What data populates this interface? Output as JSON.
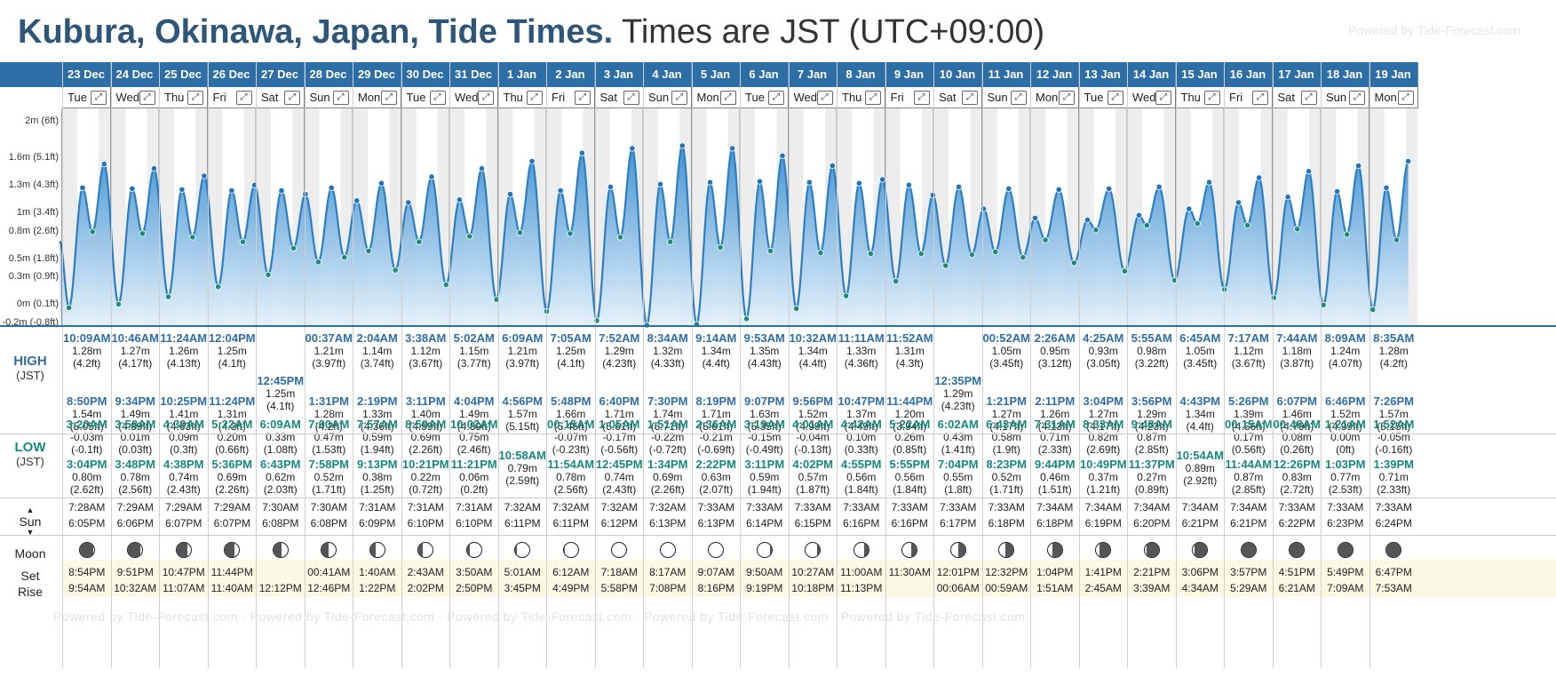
{
  "title": {
    "location": "Kubura, Okinawa, Japan, Tide Times.",
    "timezone": "Times are JST (UTC+09:00)"
  },
  "powered_by": "Powered by Tide-Forecast.com",
  "powered_by_footer": "Powered by Tide-Forecast.com  ·  Powered by Tide-Forecast.com  ·  Powered by Tide-Forecast.com  ·  Powered by Tide-Forecast.com  ·  Powered by Tide-Forecast.com",
  "row_labels": {
    "high": "HIGH",
    "high_sub": "(JST)",
    "low": "LOW",
    "low_sub": "(JST)",
    "sun": "Sun",
    "moon": "Moon",
    "set": "Set",
    "rise": "Rise"
  },
  "y_axis": [
    {
      "label": "2m (6ft)",
      "value": 2.0
    },
    {
      "label": "1.6m (5.1ft)",
      "value": 1.6
    },
    {
      "label": "1.3m (4.3ft)",
      "value": 1.3
    },
    {
      "label": "1m (3.4ft)",
      "value": 1.0
    },
    {
      "label": "0.8m (2.6ft)",
      "value": 0.8
    },
    {
      "label": "0.5m (1.8ft)",
      "value": 0.5
    },
    {
      "label": "0.3m (0.9ft)",
      "value": 0.3
    },
    {
      "label": "0m (0.1ft)",
      "value": 0.0
    },
    {
      "label": "-0.2m (-0.8ft)",
      "value": -0.2
    }
  ],
  "colors": {
    "header_blue": "#2e6ea6",
    "high_text": "#2e6ea6",
    "low_text": "#15897a",
    "tide_line": "#2b7fc4",
    "tide_fill_top": "#3d8fd0",
    "tide_fill_bottom": "#e4f1fb",
    "night_band": "#ededed"
  },
  "days": [
    {
      "date": "23 Dec",
      "dow": "Tue",
      "highs": [
        {
          "t": "10:09AM",
          "m": "1.28m",
          "ft": "(4.2ft)"
        },
        {
          "t": "8:50PM",
          "m": "1.54m",
          "ft": "(5.05ft)"
        }
      ],
      "lows": [
        {
          "t": "3:20AM",
          "m": "-0.03m",
          "ft": "(-0.1ft)"
        },
        {
          "t": "3:04PM",
          "m": "0.80m",
          "ft": "(2.62ft)"
        }
      ],
      "sunrise": "7:28AM",
      "sunset": "6:05PM",
      "moon_set": "8:54PM",
      "moon_rise": "9:54AM",
      "moon_phase": 0.08
    },
    {
      "date": "24 Dec",
      "dow": "Wed",
      "highs": [
        {
          "t": "10:46AM",
          "m": "1.27m",
          "ft": "(4.17ft)"
        },
        {
          "t": "9:34PM",
          "m": "1.49m",
          "ft": "(4.89ft)"
        }
      ],
      "lows": [
        {
          "t": "3:58AM",
          "m": "0.01m",
          "ft": "(0.03ft)"
        },
        {
          "t": "3:48PM",
          "m": "0.78m",
          "ft": "(2.56ft)"
        }
      ],
      "sunrise": "7:29AM",
      "sunset": "6:06PM",
      "moon_set": "9:51PM",
      "moon_rise": "10:32AM",
      "moon_phase": 0.12
    },
    {
      "date": "25 Dec",
      "dow": "Thu",
      "highs": [
        {
          "t": "11:24AM",
          "m": "1.26m",
          "ft": "(4.13ft)"
        },
        {
          "t": "10:25PM",
          "m": "1.41m",
          "ft": "(4.63ft)"
        }
      ],
      "lows": [
        {
          "t": "4:39AM",
          "m": "0.09m",
          "ft": "(0.3ft)"
        },
        {
          "t": "4:38PM",
          "m": "0.74m",
          "ft": "(2.43ft)"
        }
      ],
      "sunrise": "7:29AM",
      "sunset": "6:07PM",
      "moon_set": "10:47PM",
      "moon_rise": "11:07AM",
      "moon_phase": 0.16
    },
    {
      "date": "26 Dec",
      "dow": "Fri",
      "highs": [
        {
          "t": "12:04PM",
          "m": "1.25m",
          "ft": "(4.1ft)"
        },
        {
          "t": "11:24PM",
          "m": "1.31m",
          "ft": "(4.3ft)"
        }
      ],
      "lows": [
        {
          "t": "5:22AM",
          "m": "0.20m",
          "ft": "(0.66ft)"
        },
        {
          "t": "5:36PM",
          "m": "0.69m",
          "ft": "(2.26ft)"
        }
      ],
      "sunrise": "7:29AM",
      "sunset": "6:07PM",
      "moon_set": "11:44PM",
      "moon_rise": "11:40AM",
      "moon_phase": 0.2
    },
    {
      "date": "27 Dec",
      "dow": "Sat",
      "highs": [
        {
          "t": "12:45PM",
          "m": "1.25m",
          "ft": "(4.1ft)"
        }
      ],
      "lows": [
        {
          "t": "6:09AM",
          "m": "0.33m",
          "ft": "(1.08ft)"
        },
        {
          "t": "6:43PM",
          "m": "0.62m",
          "ft": "(2.03ft)"
        }
      ],
      "sunrise": "7:30AM",
      "sunset": "6:08PM",
      "moon_set": "",
      "moon_rise": "12:12PM",
      "moon_phase": 0.25
    },
    {
      "date": "28 Dec",
      "dow": "Sun",
      "highs": [
        {
          "t": "00:37AM",
          "m": "1.21m",
          "ft": "(3.97ft)"
        },
        {
          "t": "1:31PM",
          "m": "1.28m",
          "ft": "(4.2ft)"
        }
      ],
      "lows": [
        {
          "t": "7:00AM",
          "m": "0.47m",
          "ft": "(1.53ft)"
        },
        {
          "t": "7:58PM",
          "m": "0.52m",
          "ft": "(1.71ft)"
        }
      ],
      "sunrise": "7:30AM",
      "sunset": "6:08PM",
      "moon_set": "00:41AM",
      "moon_rise": "12:46PM",
      "moon_phase": 0.29
    },
    {
      "date": "29 Dec",
      "dow": "Mon",
      "highs": [
        {
          "t": "2:04AM",
          "m": "1.14m",
          "ft": "(3.74ft)"
        },
        {
          "t": "2:19PM",
          "m": "1.33m",
          "ft": "(4.36ft)"
        }
      ],
      "lows": [
        {
          "t": "7:57AM",
          "m": "0.59m",
          "ft": "(1.94ft)"
        },
        {
          "t": "9:13PM",
          "m": "0.38m",
          "ft": "(1.25ft)"
        }
      ],
      "sunrise": "7:31AM",
      "sunset": "6:09PM",
      "moon_set": "1:40AM",
      "moon_rise": "1:22PM",
      "moon_phase": 0.33
    },
    {
      "date": "30 Dec",
      "dow": "Tue",
      "highs": [
        {
          "t": "3:38AM",
          "m": "1.12m",
          "ft": "(3.67ft)"
        },
        {
          "t": "3:11PM",
          "m": "1.40m",
          "ft": "(4.59ft)"
        }
      ],
      "lows": [
        {
          "t": "8:59AM",
          "m": "0.69m",
          "ft": "(2.26ft)"
        },
        {
          "t": "10:21PM",
          "m": "0.22m",
          "ft": "(0.72ft)"
        }
      ],
      "sunrise": "7:31AM",
      "sunset": "6:10PM",
      "moon_set": "2:43AM",
      "moon_rise": "2:02PM",
      "moon_phase": 0.37
    },
    {
      "date": "31 Dec",
      "dow": "Wed",
      "highs": [
        {
          "t": "5:02AM",
          "m": "1.15m",
          "ft": "(3.77ft)"
        },
        {
          "t": "4:04PM",
          "m": "1.49m",
          "ft": "(4.89ft)"
        }
      ],
      "lows": [
        {
          "t": "10:02AM",
          "m": "0.75m",
          "ft": "(2.46ft)"
        },
        {
          "t": "11:21PM",
          "m": "0.06m",
          "ft": "(0.2ft)"
        }
      ],
      "sunrise": "7:31AM",
      "sunset": "6:10PM",
      "moon_set": "3:50AM",
      "moon_rise": "2:50PM",
      "moon_phase": 0.41
    },
    {
      "date": "1 Jan",
      "dow": "Thu",
      "highs": [
        {
          "t": "6:09AM",
          "m": "1.21m",
          "ft": "(3.97ft)"
        },
        {
          "t": "4:56PM",
          "m": "1.57m",
          "ft": "(5.15ft)"
        }
      ],
      "lows": [
        {
          "t": "10:58AM",
          "m": "0.79m",
          "ft": "(2.59ft)"
        }
      ],
      "sunrise": "7:32AM",
      "sunset": "6:11PM",
      "moon_set": "5:01AM",
      "moon_rise": "3:45PM",
      "moon_phase": 0.45
    },
    {
      "date": "2 Jan",
      "dow": "Fri",
      "highs": [
        {
          "t": "7:05AM",
          "m": "1.25m",
          "ft": "(4.1ft)"
        },
        {
          "t": "5:48PM",
          "m": "1.66m",
          "ft": "(5.45ft)"
        }
      ],
      "lows": [
        {
          "t": "00:15AM",
          "m": "-0.07m",
          "ft": "(-0.23ft)"
        },
        {
          "t": "11:54AM",
          "m": "0.78m",
          "ft": "(2.56ft)"
        }
      ],
      "sunrise": "7:32AM",
      "sunset": "6:11PM",
      "moon_set": "6:12AM",
      "moon_rise": "4:49PM",
      "moon_phase": 0.48
    },
    {
      "date": "3 Jan",
      "dow": "Sat",
      "highs": [
        {
          "t": "7:52AM",
          "m": "1.29m",
          "ft": "(4.23ft)"
        },
        {
          "t": "6:40PM",
          "m": "1.71m",
          "ft": "(5.61ft)"
        }
      ],
      "lows": [
        {
          "t": "1:05AM",
          "m": "-0.17m",
          "ft": "(-0.56ft)"
        },
        {
          "t": "12:45PM",
          "m": "0.74m",
          "ft": "(2.43ft)"
        }
      ],
      "sunrise": "7:32AM",
      "sunset": "6:12PM",
      "moon_set": "7:18AM",
      "moon_rise": "5:58PM",
      "moon_phase": 0.5
    },
    {
      "date": "4 Jan",
      "dow": "Sun",
      "highs": [
        {
          "t": "8:34AM",
          "m": "1.32m",
          "ft": "(4.33ft)"
        },
        {
          "t": "7:30PM",
          "m": "1.74m",
          "ft": "(5.71ft)"
        }
      ],
      "lows": [
        {
          "t": "1:51AM",
          "m": "-0.22m",
          "ft": "(-0.72ft)"
        },
        {
          "t": "1:34PM",
          "m": "0.69m",
          "ft": "(2.26ft)"
        }
      ],
      "sunrise": "7:32AM",
      "sunset": "6:13PM",
      "moon_set": "8:17AM",
      "moon_rise": "7:08PM",
      "moon_phase": 0.5
    },
    {
      "date": "5 Jan",
      "dow": "Mon",
      "highs": [
        {
          "t": "9:14AM",
          "m": "1.34m",
          "ft": "(4.4ft)"
        },
        {
          "t": "8:19PM",
          "m": "1.71m",
          "ft": "(5.61ft)"
        }
      ],
      "lows": [
        {
          "t": "2:36AM",
          "m": "-0.21m",
          "ft": "(-0.69ft)"
        },
        {
          "t": "2:22PM",
          "m": "0.63m",
          "ft": "(2.07ft)"
        }
      ],
      "sunrise": "7:33AM",
      "sunset": "6:13PM",
      "moon_set": "9:07AM",
      "moon_rise": "8:16PM",
      "moon_phase": 0.52
    },
    {
      "date": "6 Jan",
      "dow": "Tue",
      "highs": [
        {
          "t": "9:53AM",
          "m": "1.35m",
          "ft": "(4.43ft)"
        },
        {
          "t": "9:07PM",
          "m": "1.63m",
          "ft": "(5.35ft)"
        }
      ],
      "lows": [
        {
          "t": "3:19AM",
          "m": "-0.15m",
          "ft": "(-0.49ft)"
        },
        {
          "t": "3:11PM",
          "m": "0.59m",
          "ft": "(1.94ft)"
        }
      ],
      "sunrise": "7:33AM",
      "sunset": "6:14PM",
      "moon_set": "9:50AM",
      "moon_rise": "9:19PM",
      "moon_phase": 0.55
    },
    {
      "date": "7 Jan",
      "dow": "Wed",
      "highs": [
        {
          "t": "10:32AM",
          "m": "1.34m",
          "ft": "(4.4ft)"
        },
        {
          "t": "9:56PM",
          "m": "1.52m",
          "ft": "(4.99ft)"
        }
      ],
      "lows": [
        {
          "t": "4:01AM",
          "m": "-0.04m",
          "ft": "(-0.13ft)"
        },
        {
          "t": "4:02PM",
          "m": "0.57m",
          "ft": "(1.87ft)"
        }
      ],
      "sunrise": "7:33AM",
      "sunset": "6:15PM",
      "moon_set": "10:27AM",
      "moon_rise": "10:18PM",
      "moon_phase": 0.59
    },
    {
      "date": "8 Jan",
      "dow": "Thu",
      "highs": [
        {
          "t": "11:11AM",
          "m": "1.33m",
          "ft": "(4.36ft)"
        },
        {
          "t": "10:47PM",
          "m": "1.37m",
          "ft": "(4.49ft)"
        }
      ],
      "lows": [
        {
          "t": "4:42AM",
          "m": "0.10m",
          "ft": "(0.33ft)"
        },
        {
          "t": "4:55PM",
          "m": "0.56m",
          "ft": "(1.84ft)"
        }
      ],
      "sunrise": "7:33AM",
      "sunset": "6:16PM",
      "moon_set": "11:00AM",
      "moon_rise": "11:13PM",
      "moon_phase": 0.63
    },
    {
      "date": "9 Jan",
      "dow": "Fri",
      "highs": [
        {
          "t": "11:52AM",
          "m": "1.31m",
          "ft": "(4.3ft)"
        },
        {
          "t": "11:44PM",
          "m": "1.20m",
          "ft": "(3.94ft)"
        }
      ],
      "lows": [
        {
          "t": "5:22AM",
          "m": "0.26m",
          "ft": "(0.85ft)"
        },
        {
          "t": "5:55PM",
          "m": "0.56m",
          "ft": "(1.84ft)"
        }
      ],
      "sunrise": "7:33AM",
      "sunset": "6:16PM",
      "moon_set": "11:30AM",
      "moon_rise": "",
      "moon_phase": 0.68
    },
    {
      "date": "10 Jan",
      "dow": "Sat",
      "highs": [
        {
          "t": "12:35PM",
          "m": "1.29m",
          "ft": "(4.23ft)"
        }
      ],
      "lows": [
        {
          "t": "6:02AM",
          "m": "0.43m",
          "ft": "(1.41ft)"
        },
        {
          "t": "7:04PM",
          "m": "0.55m",
          "ft": "(1.8ft)"
        }
      ],
      "sunrise": "7:33AM",
      "sunset": "6:17PM",
      "moon_set": "12:01PM",
      "moon_rise": "00:06AM",
      "moon_phase": 0.72
    },
    {
      "date": "11 Jan",
      "dow": "Sun",
      "highs": [
        {
          "t": "00:52AM",
          "m": "1.05m",
          "ft": "(3.45ft)"
        },
        {
          "t": "1:21PM",
          "m": "1.27m",
          "ft": "(4.17ft)"
        }
      ],
      "lows": [
        {
          "t": "6:43AM",
          "m": "0.58m",
          "ft": "(1.9ft)"
        },
        {
          "t": "8:23PM",
          "m": "0.52m",
          "ft": "(1.71ft)"
        }
      ],
      "sunrise": "7:33AM",
      "sunset": "6:18PM",
      "moon_set": "12:32PM",
      "moon_rise": "00:59AM",
      "moon_phase": 0.76
    },
    {
      "date": "12 Jan",
      "dow": "Mon",
      "highs": [
        {
          "t": "2:26AM",
          "m": "0.95m",
          "ft": "(3.12ft)"
        },
        {
          "t": "2:11PM",
          "m": "1.26m",
          "ft": "(4.13ft)"
        }
      ],
      "lows": [
        {
          "t": "7:31AM",
          "m": "0.71m",
          "ft": "(2.33ft)"
        },
        {
          "t": "9:44PM",
          "m": "0.46m",
          "ft": "(1.51ft)"
        }
      ],
      "sunrise": "7:34AM",
      "sunset": "6:18PM",
      "moon_set": "1:04PM",
      "moon_rise": "1:51AM",
      "moon_phase": 0.8
    },
    {
      "date": "13 Jan",
      "dow": "Tue",
      "highs": [
        {
          "t": "4:25AM",
          "m": "0.93m",
          "ft": "(3.05ft)"
        },
        {
          "t": "3:04PM",
          "m": "1.27m",
          "ft": "(4.17ft)"
        }
      ],
      "lows": [
        {
          "t": "8:33AM",
          "m": "0.82m",
          "ft": "(2.69ft)"
        },
        {
          "t": "10:49PM",
          "m": "0.37m",
          "ft": "(1.21ft)"
        }
      ],
      "sunrise": "7:34AM",
      "sunset": "6:19PM",
      "moon_set": "1:41PM",
      "moon_rise": "2:45AM",
      "moon_phase": 0.84
    },
    {
      "date": "14 Jan",
      "dow": "Wed",
      "highs": [
        {
          "t": "5:55AM",
          "m": "0.98m",
          "ft": "(3.22ft)"
        },
        {
          "t": "3:56PM",
          "m": "1.29m",
          "ft": "(4.23ft)"
        }
      ],
      "lows": [
        {
          "t": "9:48AM",
          "m": "0.87m",
          "ft": "(2.85ft)"
        },
        {
          "t": "11:37PM",
          "m": "0.27m",
          "ft": "(0.89ft)"
        }
      ],
      "sunrise": "7:34AM",
      "sunset": "6:20PM",
      "moon_set": "2:21PM",
      "moon_rise": "3:39AM",
      "moon_phase": 0.87
    },
    {
      "date": "15 Jan",
      "dow": "Thu",
      "highs": [
        {
          "t": "6:45AM",
          "m": "1.05m",
          "ft": "(3.45ft)"
        },
        {
          "t": "4:43PM",
          "m": "1.34m",
          "ft": "(4.4ft)"
        }
      ],
      "lows": [
        {
          "t": "10:54AM",
          "m": "0.89m",
          "ft": "(2.92ft)"
        }
      ],
      "sunrise": "7:34AM",
      "sunset": "6:21PM",
      "moon_set": "3:06PM",
      "moon_rise": "4:34AM",
      "moon_phase": 0.9
    },
    {
      "date": "16 Jan",
      "dow": "Fri",
      "highs": [
        {
          "t": "7:17AM",
          "m": "1.12m",
          "ft": "(3.67ft)"
        },
        {
          "t": "5:26PM",
          "m": "1.39m",
          "ft": "(4.56ft)"
        }
      ],
      "lows": [
        {
          "t": "00:15AM",
          "m": "0.17m",
          "ft": "(0.56ft)"
        },
        {
          "t": "11:44AM",
          "m": "0.87m",
          "ft": "(2.85ft)"
        }
      ],
      "sunrise": "7:34AM",
      "sunset": "6:21PM",
      "moon_set": "3:57PM",
      "moon_rise": "5:29AM",
      "moon_phase": 0.93
    },
    {
      "date": "17 Jan",
      "dow": "Sat",
      "highs": [
        {
          "t": "7:44AM",
          "m": "1.18m",
          "ft": "(3.87ft)"
        },
        {
          "t": "6:07PM",
          "m": "1.46m",
          "ft": "(4.79ft)"
        }
      ],
      "lows": [
        {
          "t": "00:48AM",
          "m": "0.08m",
          "ft": "(0.26ft)"
        },
        {
          "t": "12:26PM",
          "m": "0.83m",
          "ft": "(2.72ft)"
        }
      ],
      "sunrise": "7:33AM",
      "sunset": "6:22PM",
      "moon_set": "4:51PM",
      "moon_rise": "6:21AM",
      "moon_phase": 0.96
    },
    {
      "date": "18 Jan",
      "dow": "Sun",
      "highs": [
        {
          "t": "8:09AM",
          "m": "1.24m",
          "ft": "(4.07ft)"
        },
        {
          "t": "6:46PM",
          "m": "1.52m",
          "ft": "(4.99ft)"
        }
      ],
      "lows": [
        {
          "t": "1:21AM",
          "m": "0.00m",
          "ft": "(0ft)"
        },
        {
          "t": "1:03PM",
          "m": "0.77m",
          "ft": "(2.53ft)"
        }
      ],
      "sunrise": "7:33AM",
      "sunset": "6:23PM",
      "moon_set": "5:49PM",
      "moon_rise": "7:09AM",
      "moon_phase": 0.98
    },
    {
      "date": "19 Jan",
      "dow": "Mon",
      "highs": [
        {
          "t": "8:35AM",
          "m": "1.28m",
          "ft": "(4.2ft)"
        },
        {
          "t": "7:26PM",
          "m": "1.57m",
          "ft": "(5.15ft)"
        }
      ],
      "lows": [
        {
          "t": "1:52AM",
          "m": "-0.05m",
          "ft": "(-0.16ft)"
        },
        {
          "t": "1:39PM",
          "m": "0.71m",
          "ft": "(2.33ft)"
        }
      ],
      "sunrise": "7:33AM",
      "sunset": "6:24PM",
      "moon_set": "6:47PM",
      "moon_rise": "7:53AM",
      "moon_phase": 0.0
    }
  ]
}
